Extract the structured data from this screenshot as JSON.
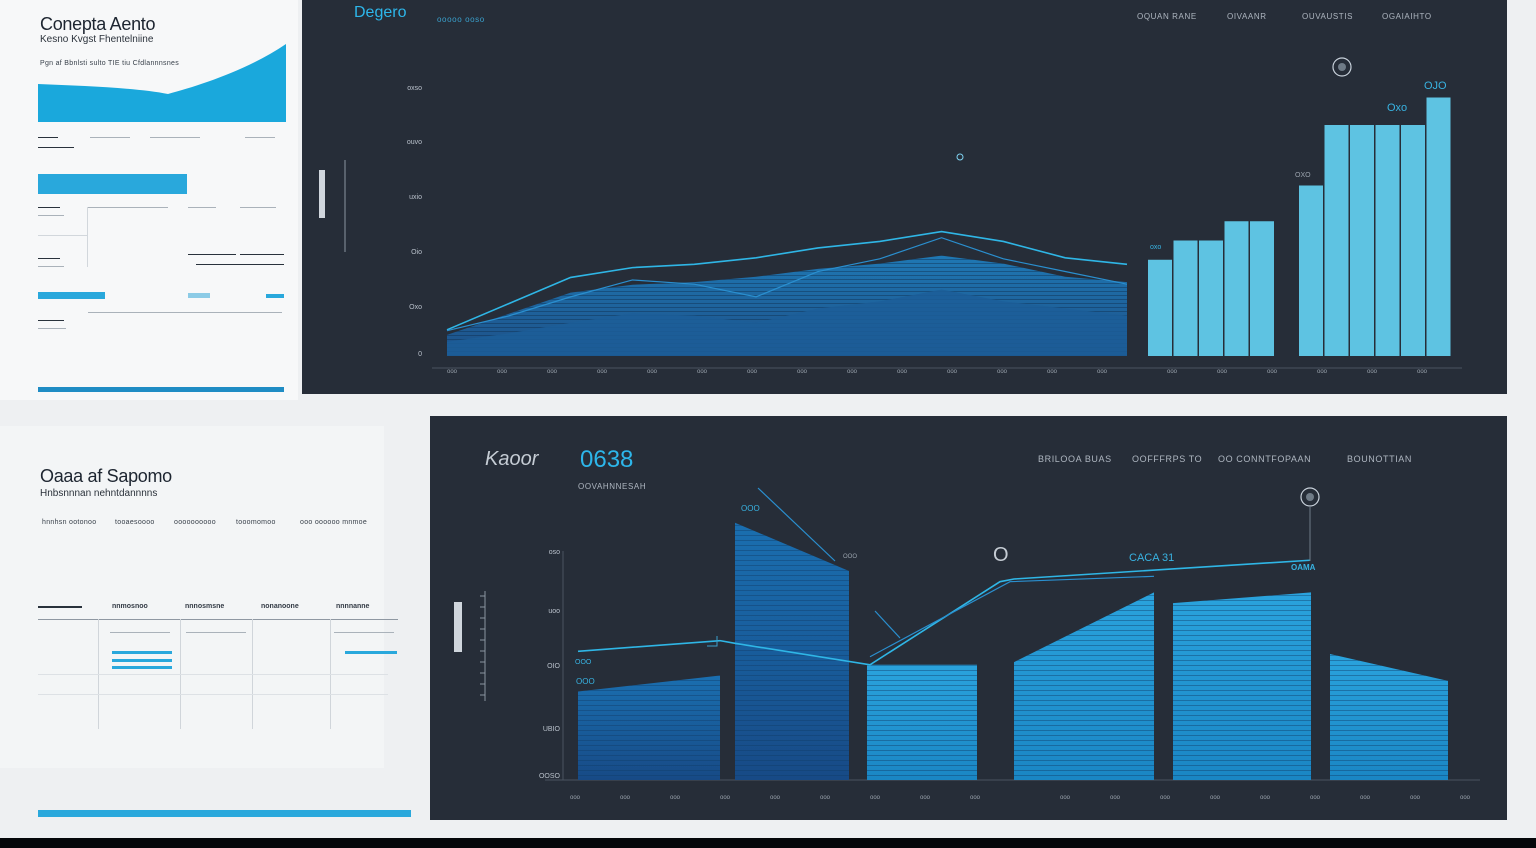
{
  "top_left": {
    "title": "Conepta Aento",
    "subtitle": "Kesno Kvgst Fhentelniine",
    "meta": "Pgn af Bbnlsti sulto TIE tiu Cfdlannnsnes"
  },
  "bottom_left": {
    "title": "Oaaa af Sapomo",
    "subtitle": "Hnbsnnnan nehntdannnns",
    "meta_items": [
      "hnnhsn ootonoo",
      "tooaesoooo",
      "oooooooooo",
      "tooomomoo",
      "ooo oooooo mnmoe"
    ],
    "table_headers": [
      "nnmosnoo",
      "nnnosmsne",
      "nonanoone",
      "nnnnanne"
    ]
  },
  "top_chart": {
    "title": "Degero",
    "title_note": "ooooo ooso",
    "legend": [
      "OQUAN RANE",
      "OIVAANR",
      "OUVAUSTIS",
      "OGAIAIHTO"
    ],
    "y_ticks": [
      "0",
      "Oxo",
      "Oio",
      "uxio",
      "ouvo",
      "oxso"
    ],
    "bar_labels": [
      "oxo",
      "Oxo",
      "OJO",
      "OXO"
    ],
    "x_labels": [
      "ooo",
      "ooo",
      "ooo",
      "ooo",
      "ooo",
      "ooo",
      "ooo",
      "ooo",
      "ooo",
      "ooo",
      "ooo",
      "ooo",
      "ooo",
      "ooo",
      "ooo",
      "ooo",
      "ooo",
      "ooo",
      "ooo",
      "ooo"
    ],
    "accent": "#2fb6e6",
    "bar_color": "#5ec3e2"
  },
  "bottom_chart": {
    "title": "Kaoor",
    "value": "0638",
    "subtitle": "OOVAHNNESAH",
    "legend": [
      "BRILOOA BUAS",
      "OOFFFRPS TO",
      "OO CONNTFOPAAN",
      "BOUNOTTIAN"
    ],
    "y_ticks": [
      "oso",
      "uoo",
      "OIO",
      "UBIO",
      "OOSO"
    ],
    "annotation": "CACA 31",
    "marker_label": "O",
    "bar_labels": [
      "OOO",
      "OOO",
      "OOO",
      "OOO",
      "OOO",
      "OOO",
      "OOO",
      "OAMA"
    ],
    "x_labels": [
      "ooo",
      "ooo",
      "ooo",
      "ooo",
      "ooo",
      "ooo",
      "ooo",
      "ooo",
      "ooo",
      "ooo",
      "ooo",
      "ooo",
      "ooo",
      "ooo",
      "ooo",
      "ooo",
      "ooo",
      "ooo"
    ],
    "accent": "#2fb6e6"
  },
  "chart_data": [
    {
      "type": "area",
      "title": "Degero",
      "ylim": [
        0,
        500
      ],
      "x": [
        1,
        2,
        3,
        4,
        5,
        6,
        7,
        8,
        9,
        10,
        11,
        12
      ],
      "series": [
        {
          "values": [
            60,
            95,
            140,
            180,
            170,
            140,
            200,
            230,
            280,
            230,
            200,
            170
          ]
        },
        {
          "values": [
            80,
            160,
            240,
            270,
            280,
            300,
            330,
            350,
            380,
            350,
            300,
            280
          ]
        }
      ],
      "bars": {
        "categories": [
          "b1",
          "b2",
          "b3",
          "b4",
          "b5",
          "b6",
          "b7",
          "b8",
          "b9",
          "b10",
          "b11",
          "b12"
        ],
        "values": [
          175,
          210,
          210,
          245,
          245,
          0,
          310,
          420,
          420,
          420,
          420,
          470
        ]
      }
    },
    {
      "type": "bar",
      "title": "Kaoor",
      "ylim": [
        0,
        500
      ],
      "categories": [
        "c1",
        "c2",
        "c3",
        "c4",
        "c5",
        "c6",
        "c7"
      ],
      "values": [
        165,
        480,
        215,
        220,
        350,
        340,
        195
      ],
      "line": [
        230,
        240,
        420,
        300,
        380,
        410,
        420
      ]
    }
  ]
}
